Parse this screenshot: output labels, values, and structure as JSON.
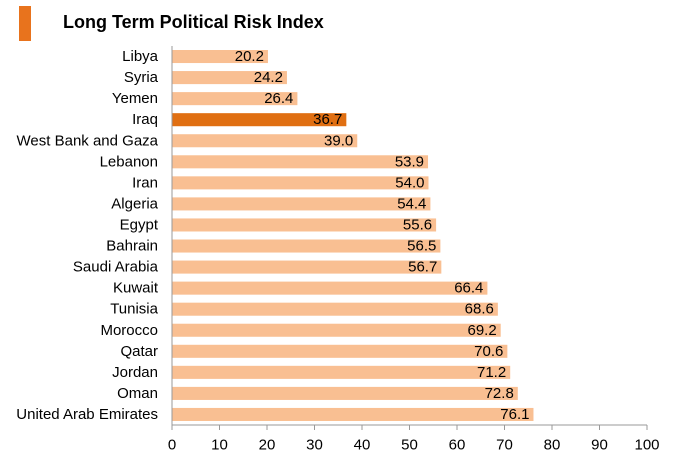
{
  "header": {
    "title": "Long Term Political Risk Index",
    "accent_color": "#e8731d"
  },
  "chart_data": {
    "type": "bar",
    "orientation": "horizontal",
    "title": "Long Term Political Risk Index",
    "categories": [
      "Libya",
      "Syria",
      "Yemen",
      "Iraq",
      "West Bank and Gaza",
      "Lebanon",
      "Iran",
      "Algeria",
      "Egypt",
      "Bahrain",
      "Saudi Arabia",
      "Kuwait",
      "Tunisia",
      "Morocco",
      "Qatar",
      "Jordan",
      "Oman",
      "United Arab Emirates"
    ],
    "values": [
      20.2,
      24.2,
      26.4,
      36.7,
      39.0,
      53.9,
      54.0,
      54.4,
      55.6,
      56.5,
      56.7,
      66.4,
      68.6,
      69.2,
      70.6,
      71.2,
      72.8,
      76.1
    ],
    "value_labels": [
      "20.2",
      "24.2",
      "26.4",
      "36.7",
      "39.0",
      "53.9",
      "54.0",
      "54.4",
      "55.6",
      "56.5",
      "56.7",
      "66.4",
      "68.6",
      "69.2",
      "70.6",
      "71.2",
      "72.8",
      "76.1"
    ],
    "highlight": "Iraq",
    "xlim": [
      0,
      100
    ],
    "x_ticks": [
      0,
      10,
      20,
      30,
      40,
      50,
      60,
      70,
      80,
      90,
      100
    ],
    "x_tick_labels": [
      "0",
      "10",
      "20",
      "30",
      "40",
      "50",
      "60",
      "70",
      "80",
      "90",
      "100"
    ],
    "bar_color": "#f9bf92",
    "highlight_color": "#e06f12",
    "grid": false,
    "legend": "none"
  }
}
